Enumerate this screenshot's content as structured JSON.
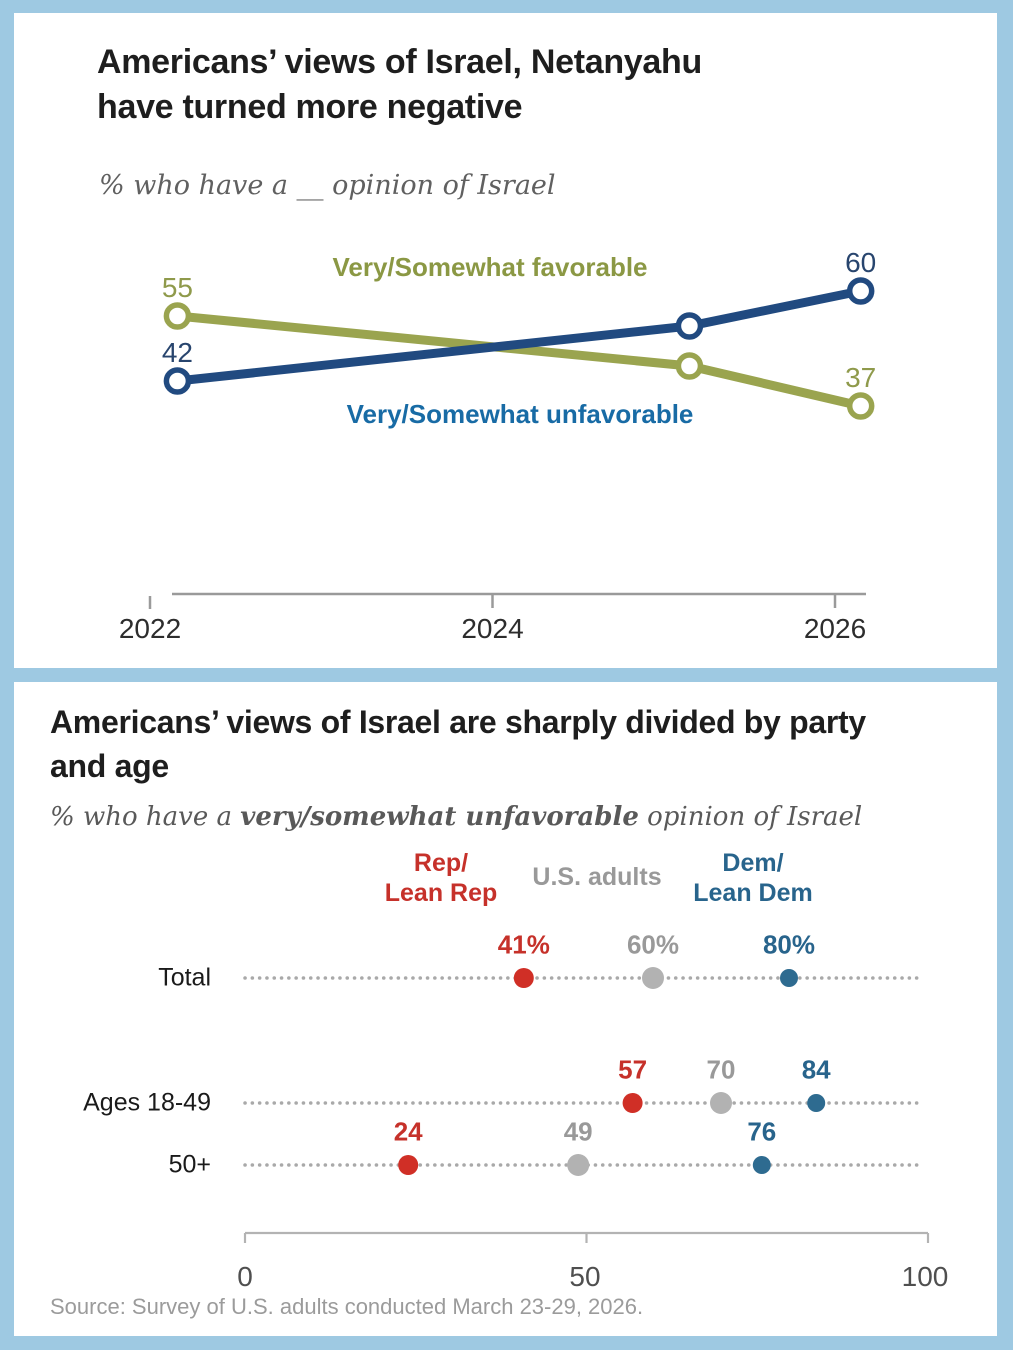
{
  "frame": {
    "background_color": "#9ec9e2",
    "card_color": "#ffffff"
  },
  "chart_data": [
    {
      "type": "line",
      "title_lines": [
        "Americans’ views of Israel, Netanyahu",
        "have turned more negative"
      ],
      "subtitle": "% who have a __ opinion of Israel",
      "x_years": [
        2022.16,
        2025.15,
        2026.15
      ],
      "x_axis_ticks": [
        {
          "label": "2022",
          "year": 2022
        },
        {
          "label": "2024",
          "year": 2024
        },
        {
          "label": "2026",
          "year": 2026
        }
      ],
      "ylim": [
        30,
        65
      ],
      "grid": false,
      "series": [
        {
          "name": "Very/Somewhat favorable",
          "color": "#9aa44f",
          "label_color": "#8f9a4b",
          "name_color": "#8b9844",
          "values": [
            55,
            45,
            37
          ],
          "point_labels": [
            "55",
            null,
            "37"
          ]
        },
        {
          "name": "Very/Somewhat unfavorable",
          "color": "#214a80",
          "label_color": "#28456e",
          "name_color": "#186ba5",
          "values": [
            42,
            53,
            60
          ],
          "point_labels": [
            "42",
            null,
            "60"
          ]
        }
      ]
    },
    {
      "type": "dot",
      "title_lines": [
        "Americans’ views of Israel are sharply divided by party",
        "and age"
      ],
      "subtitle_parts": {
        "prefix": "% who have a ",
        "bold": "very/somewhat unfavorable",
        "suffix": " opinion of Israel"
      },
      "columns": [
        {
          "id": "rep",
          "label_lines": [
            "Rep/",
            "Lean Rep"
          ],
          "dot_color": "#d02f26",
          "text_color": "#c6312a"
        },
        {
          "id": "us",
          "label_lines": [
            "U.S. adults"
          ],
          "dot_color": "#b2b2b2",
          "text_color": "#999999"
        },
        {
          "id": "dem",
          "label_lines": [
            "Dem/",
            "Lean Dem"
          ],
          "dot_color": "#2e6b90",
          "text_color": "#28648c"
        }
      ],
      "rows": [
        {
          "label": "Total",
          "values": [
            41,
            60,
            80
          ],
          "value_labels": [
            "41%",
            "60%",
            "80%"
          ]
        },
        {
          "label": "Ages 18-49",
          "values": [
            57,
            70,
            84
          ],
          "value_labels": [
            "57",
            "70",
            "84"
          ]
        },
        {
          "label": "50+",
          "values": [
            24,
            49,
            76
          ],
          "value_labels": [
            "24",
            "49",
            "76"
          ]
        }
      ],
      "xlim": [
        0,
        100
      ],
      "x_axis_ticks": [
        {
          "label": "0",
          "value": 0
        },
        {
          "label": "50",
          "value": 50
        },
        {
          "label": "100",
          "value": 100
        }
      ],
      "source": "Source: Survey of U.S. adults conducted March 23-29, 2026."
    }
  ]
}
